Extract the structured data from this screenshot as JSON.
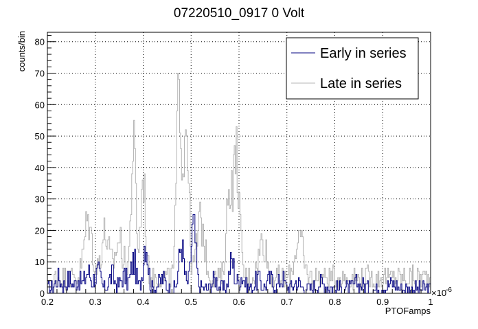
{
  "chart_data": {
    "type": "histogram",
    "title": "07220510_0917 0 Volt",
    "xlabel": "PTOFamps",
    "ylabel": "counts/bin",
    "x_exponent_label": "×10",
    "x_exponent_power": "-6",
    "xlim": [
      0.2,
      1.0
    ],
    "ylim": [
      0,
      83
    ],
    "x_ticks": [
      "0.2",
      "0.3",
      "0.4",
      "0.5",
      "0.6",
      "0.7",
      "0.8",
      "0.9",
      "1"
    ],
    "y_ticks": [
      "0",
      "10",
      "20",
      "30",
      "40",
      "50",
      "60",
      "70",
      "80"
    ],
    "grid": true,
    "legend_position": "top-right",
    "bins": 400,
    "series": [
      {
        "name": "Early in series",
        "color": "#000080",
        "peaks": [
          {
            "x": 0.223,
            "height": 3,
            "width": 0.006
          },
          {
            "x": 0.245,
            "height": 3,
            "width": 0.006
          },
          {
            "x": 0.265,
            "height": 3,
            "width": 0.006
          },
          {
            "x": 0.285,
            "height": 5,
            "width": 0.006
          },
          {
            "x": 0.305,
            "height": 5,
            "width": 0.006
          },
          {
            "x": 0.335,
            "height": 4,
            "width": 0.006
          },
          {
            "x": 0.36,
            "height": 4,
            "width": 0.006
          },
          {
            "x": 0.38,
            "height": 9,
            "width": 0.005
          },
          {
            "x": 0.405,
            "height": 15,
            "width": 0.005
          },
          {
            "x": 0.44,
            "height": 3,
            "width": 0.006
          },
          {
            "x": 0.48,
            "height": 14,
            "width": 0.005
          },
          {
            "x": 0.505,
            "height": 20,
            "width": 0.005
          },
          {
            "x": 0.55,
            "height": 3,
            "width": 0.006
          },
          {
            "x": 0.585,
            "height": 9,
            "width": 0.005
          },
          {
            "x": 0.605,
            "height": 4,
            "width": 0.006
          },
          {
            "x": 0.64,
            "height": 3,
            "width": 0.006
          },
          {
            "x": 0.665,
            "height": 3,
            "width": 0.006
          },
          {
            "x": 0.69,
            "height": 3,
            "width": 0.006
          },
          {
            "x": 0.72,
            "height": 2,
            "width": 0.006
          },
          {
            "x": 0.77,
            "height": 1.5,
            "width": 0.01
          },
          {
            "x": 0.85,
            "height": 1.5,
            "width": 0.01
          },
          {
            "x": 0.92,
            "height": 1.5,
            "width": 0.01
          }
        ],
        "baseline": 1.5
      },
      {
        "name": "Late in series",
        "color": "#b4b4b4",
        "peaks": [
          {
            "x": 0.285,
            "height": 18,
            "width": 0.008
          },
          {
            "x": 0.32,
            "height": 14,
            "width": 0.008
          },
          {
            "x": 0.35,
            "height": 12,
            "width": 0.008
          },
          {
            "x": 0.38,
            "height": 42,
            "width": 0.005
          },
          {
            "x": 0.4,
            "height": 32,
            "width": 0.005
          },
          {
            "x": 0.475,
            "height": 60,
            "width": 0.005
          },
          {
            "x": 0.49,
            "height": 50,
            "width": 0.005
          },
          {
            "x": 0.52,
            "height": 18,
            "width": 0.008
          },
          {
            "x": 0.58,
            "height": 28,
            "width": 0.006
          },
          {
            "x": 0.595,
            "height": 38,
            "width": 0.006
          },
          {
            "x": 0.65,
            "height": 12,
            "width": 0.008
          },
          {
            "x": 0.725,
            "height": 13,
            "width": 0.008
          }
        ],
        "baseline": 5
      }
    ]
  }
}
